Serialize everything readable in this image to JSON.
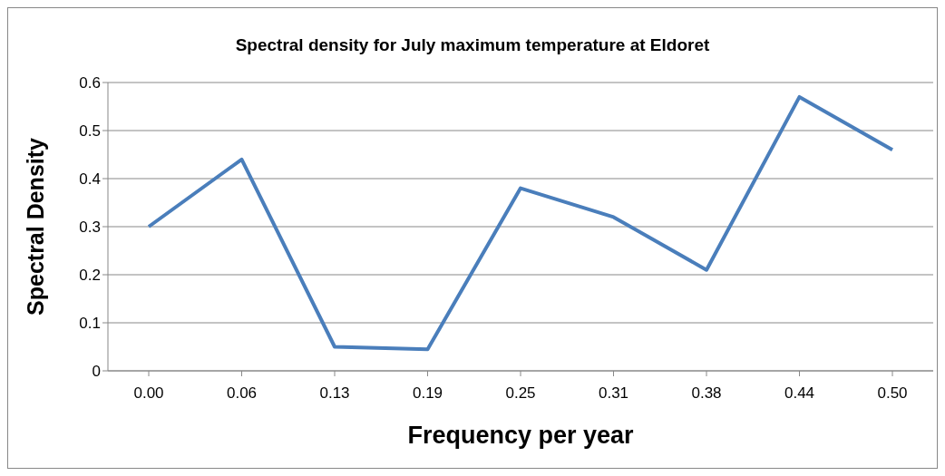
{
  "chart_data": {
    "type": "line",
    "title": "Spectral density for July maximum temperature at Eldoret",
    "xlabel": "Frequency per year",
    "ylabel": "Spectral Density",
    "categories": [
      "0.00",
      "0.06",
      "0.13",
      "0.19",
      "0.25",
      "0.31",
      "0.38",
      "0.44",
      "0.50"
    ],
    "series": [
      {
        "color": "#4a7ebb",
        "values": [
          0.3,
          0.44,
          0.05,
          0.045,
          0.38,
          0.32,
          0.21,
          0.57,
          0.46
        ]
      }
    ],
    "ylim": [
      0,
      0.6
    ],
    "yticks": [
      0,
      0.1,
      0.2,
      0.3,
      0.4,
      0.5,
      0.6
    ],
    "grid": "y",
    "legend": false,
    "marker": "none",
    "line_style": "solid"
  }
}
